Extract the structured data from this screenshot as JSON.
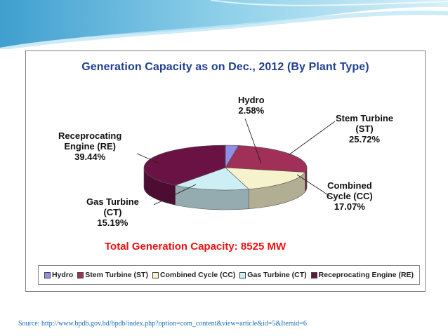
{
  "source_text": "Source: http://www.bpdb.gov.bd/bpdb/index.php?option=com_content&view=article&id=5&Itemid=6",
  "total_label": "Total Generation Capacity: 8525 MW",
  "colors": {
    "title": "#1f3f8f",
    "total": "#ee1111",
    "source": "#1a6cb5"
  },
  "chart_data": {
    "type": "pie",
    "title": "Generation Capacity as on Dec., 2012 (By Plant Type)",
    "legend_position": "bottom",
    "slices": [
      {
        "name": "Hydro",
        "label_lines": [
          "Hydro"
        ],
        "value": 2.58,
        "value_label": "2.58%",
        "color": "#8f8fe8"
      },
      {
        "name": "Stem Turbine (ST)",
        "label_lines": [
          "Stem Turbine",
          "(ST)"
        ],
        "value": 25.72,
        "value_label": "25.72%",
        "color": "#a03058"
      },
      {
        "name": "Combined Cycle (CC)",
        "label_lines": [
          "Combined",
          "Cycle (CC)"
        ],
        "value": 17.07,
        "value_label": "17.07%",
        "color": "#f6f2cc"
      },
      {
        "name": "Gas Turbine (CT)",
        "label_lines": [
          "Gas Turbine",
          "(CT)"
        ],
        "value": 15.19,
        "value_label": "15.19%",
        "color": "#cdeef4"
      },
      {
        "name": "Receprocating Engine (RE)",
        "label_lines": [
          "Receprocating",
          "Engine (RE)"
        ],
        "value": 39.44,
        "value_label": "39.44%",
        "color": "#6b1245"
      }
    ]
  }
}
